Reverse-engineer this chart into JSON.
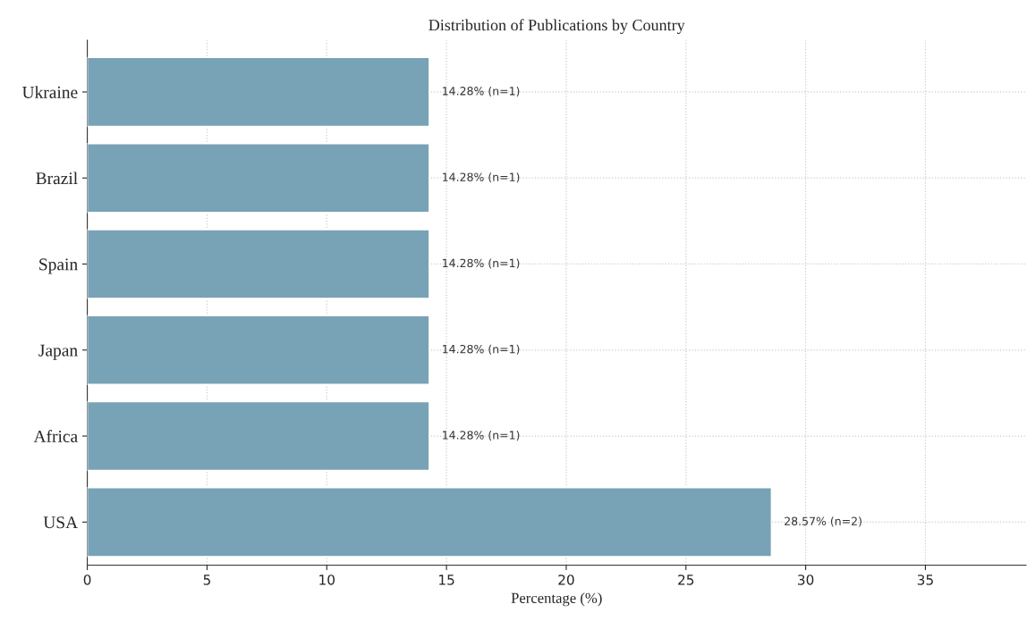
{
  "chart_data": {
    "type": "bar",
    "orientation": "horizontal",
    "title": "Distribution of Publications by Country",
    "xlabel": "Percentage (%)",
    "categories": [
      "Ukraine",
      "Brazil",
      "Spain",
      "Japan",
      "Africa",
      "USA"
    ],
    "values": [
      14.28,
      14.28,
      14.28,
      14.28,
      14.28,
      28.57
    ],
    "value_labels": [
      "14.28% (n=1)",
      "14.28% (n=1)",
      "14.28% (n=1)",
      "14.28% (n=1)",
      "14.28% (n=1)",
      "28.57% (n=2)"
    ],
    "color": "#78a2b5",
    "xlim": [
      0,
      39.2
    ],
    "xticks": [
      0,
      5,
      10,
      15,
      20,
      25,
      30,
      35
    ],
    "grid": true
  }
}
